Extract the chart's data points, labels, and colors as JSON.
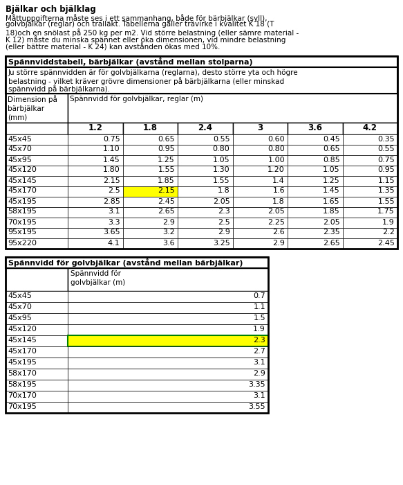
{
  "title": "Bjälkar och bjälklag",
  "intro_text": "Måttuppgifterna måste ses i ett sammanhang, både för bärbjälkar (syll),\ngolvbjälkar (reglar) och tralläkt. Tabellerna gäller trävirke i kvalitet K 18 (T\n18)och en snölast på 250 kg per m2. Vid större belastning (eller sämre material -\nK 12) måste du minska spännet eller öka dimensionen, vid mindre belastning\n(eller bättre material - K 24) kan avstånden ökas med 10%.",
  "table1_title": "Spännviddstabell, bärbjälkar (avstånd mellan stolparna)",
  "table1_subtitle": "Ju större spännvidden är för golvbjälkarna (reglarna), desto större yta och högre\nbelastning - vilket kräver grövre dimensioner på bärbjälkarna (eller minskad\nspännvidd på bärbjälkarna).",
  "table1_col_header_left": "Dimension på\nbärbjälkar\n(mm)",
  "table1_col_header_right": "Spännvidd för golvbjälkar, reglar (m)",
  "table1_sub_cols": [
    "1.2",
    "1.8",
    "2.4",
    "3",
    "3.6",
    "4.2"
  ],
  "table1_rows": [
    [
      "45x45",
      "0.75",
      "0.65",
      "0.55",
      "0.60",
      "0.45",
      "0.35"
    ],
    [
      "45x70",
      "1.10",
      "0.95",
      "0.80",
      "0.80",
      "0.65",
      "0.55"
    ],
    [
      "45x95",
      "1.45",
      "1.25",
      "1.05",
      "1.00",
      "0.85",
      "0.75"
    ],
    [
      "45x120",
      "1.80",
      "1.55",
      "1.30",
      "1.20",
      "1.05",
      "0.95"
    ],
    [
      "45x145",
      "2.15",
      "1.85",
      "1.55",
      "1.4",
      "1.25",
      "1.15"
    ],
    [
      "45x170",
      "2.5",
      "2.15",
      "1.8",
      "1.6",
      "1.45",
      "1.35"
    ],
    [
      "45x195",
      "2.85",
      "2.45",
      "2.05",
      "1.8",
      "1.65",
      "1.55"
    ],
    [
      "58x195",
      "3.1",
      "2.65",
      "2.3",
      "2.05",
      "1.85",
      "1.75"
    ],
    [
      "70x195",
      "3.3",
      "2.9",
      "2.5",
      "2.25",
      "2.05",
      "1.9"
    ],
    [
      "95x195",
      "3.65",
      "3.2",
      "2.9",
      "2.6",
      "2.35",
      "2.2"
    ],
    [
      "95x220",
      "4.1",
      "3.6",
      "3.25",
      "2.9",
      "2.65",
      "2.45"
    ]
  ],
  "table1_highlight_row": 5,
  "table1_highlight_col": 1,
  "table2_title": "Spännvidd för golvbjälkar (avstånd mellan bärbjälkar)",
  "table2_col_header": "Spännvidd för\ngolvbjälkar (m)",
  "table2_rows": [
    [
      "45x45",
      "0.7"
    ],
    [
      "45x70",
      "1.1"
    ],
    [
      "45x95",
      "1.5"
    ],
    [
      "45x120",
      "1.9"
    ],
    [
      "45x145",
      "2.3"
    ],
    [
      "45x170",
      "2.7"
    ],
    [
      "45x195",
      "3.1"
    ],
    [
      "58x170",
      "2.9"
    ],
    [
      "58x195",
      "3.35"
    ],
    [
      "70x170",
      "3.1"
    ],
    [
      "70x195",
      "3.55"
    ]
  ],
  "table2_highlight_row": 4,
  "highlight_yellow": "#FFFF00",
  "highlight_border": "#008000",
  "bg_color": "#FFFFFF",
  "text_color": "#000000",
  "border_color": "#000000"
}
